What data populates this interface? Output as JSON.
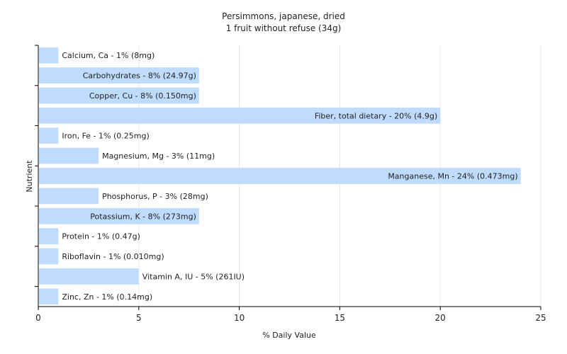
{
  "chart_data": {
    "type": "bar",
    "orientation": "horizontal",
    "title": "Persimmons, japanese, dried",
    "subtitle": "1 fruit without refuse (34g)",
    "xlabel": "% Daily Value",
    "ylabel": "Nutrient",
    "xlim": [
      0,
      25
    ],
    "xticks": [
      0,
      5,
      10,
      15,
      20,
      25
    ],
    "grid": true,
    "bar_color": "#bfdcff",
    "categories": [
      "Calcium, Ca",
      "Carbohydrates",
      "Copper, Cu",
      "Fiber, total dietary",
      "Iron, Fe",
      "Magnesium, Mg",
      "Manganese, Mn",
      "Phosphorus, P",
      "Potassium, K",
      "Protein",
      "Riboflavin",
      "Vitamin A, IU",
      "Zinc, Zn"
    ],
    "values": [
      1,
      8,
      8,
      20,
      1,
      3,
      24,
      3,
      8,
      1,
      1,
      5,
      1
    ],
    "labels": [
      "Calcium, Ca - 1% (8mg)",
      "Carbohydrates - 8% (24.97g)",
      "Copper, Cu - 8% (0.150mg)",
      "Fiber, total dietary - 20% (4.9g)",
      "Iron, Fe - 1% (0.25mg)",
      "Magnesium, Mg - 3% (11mg)",
      "Manganese, Mn - 24% (0.473mg)",
      "Phosphorus, P - 3% (28mg)",
      "Potassium, K - 8% (273mg)",
      "Protein - 1% (0.47g)",
      "Riboflavin - 1% (0.010mg)",
      "Vitamin A, IU - 5% (261IU)",
      "Zinc, Zn - 1% (0.14mg)"
    ]
  }
}
